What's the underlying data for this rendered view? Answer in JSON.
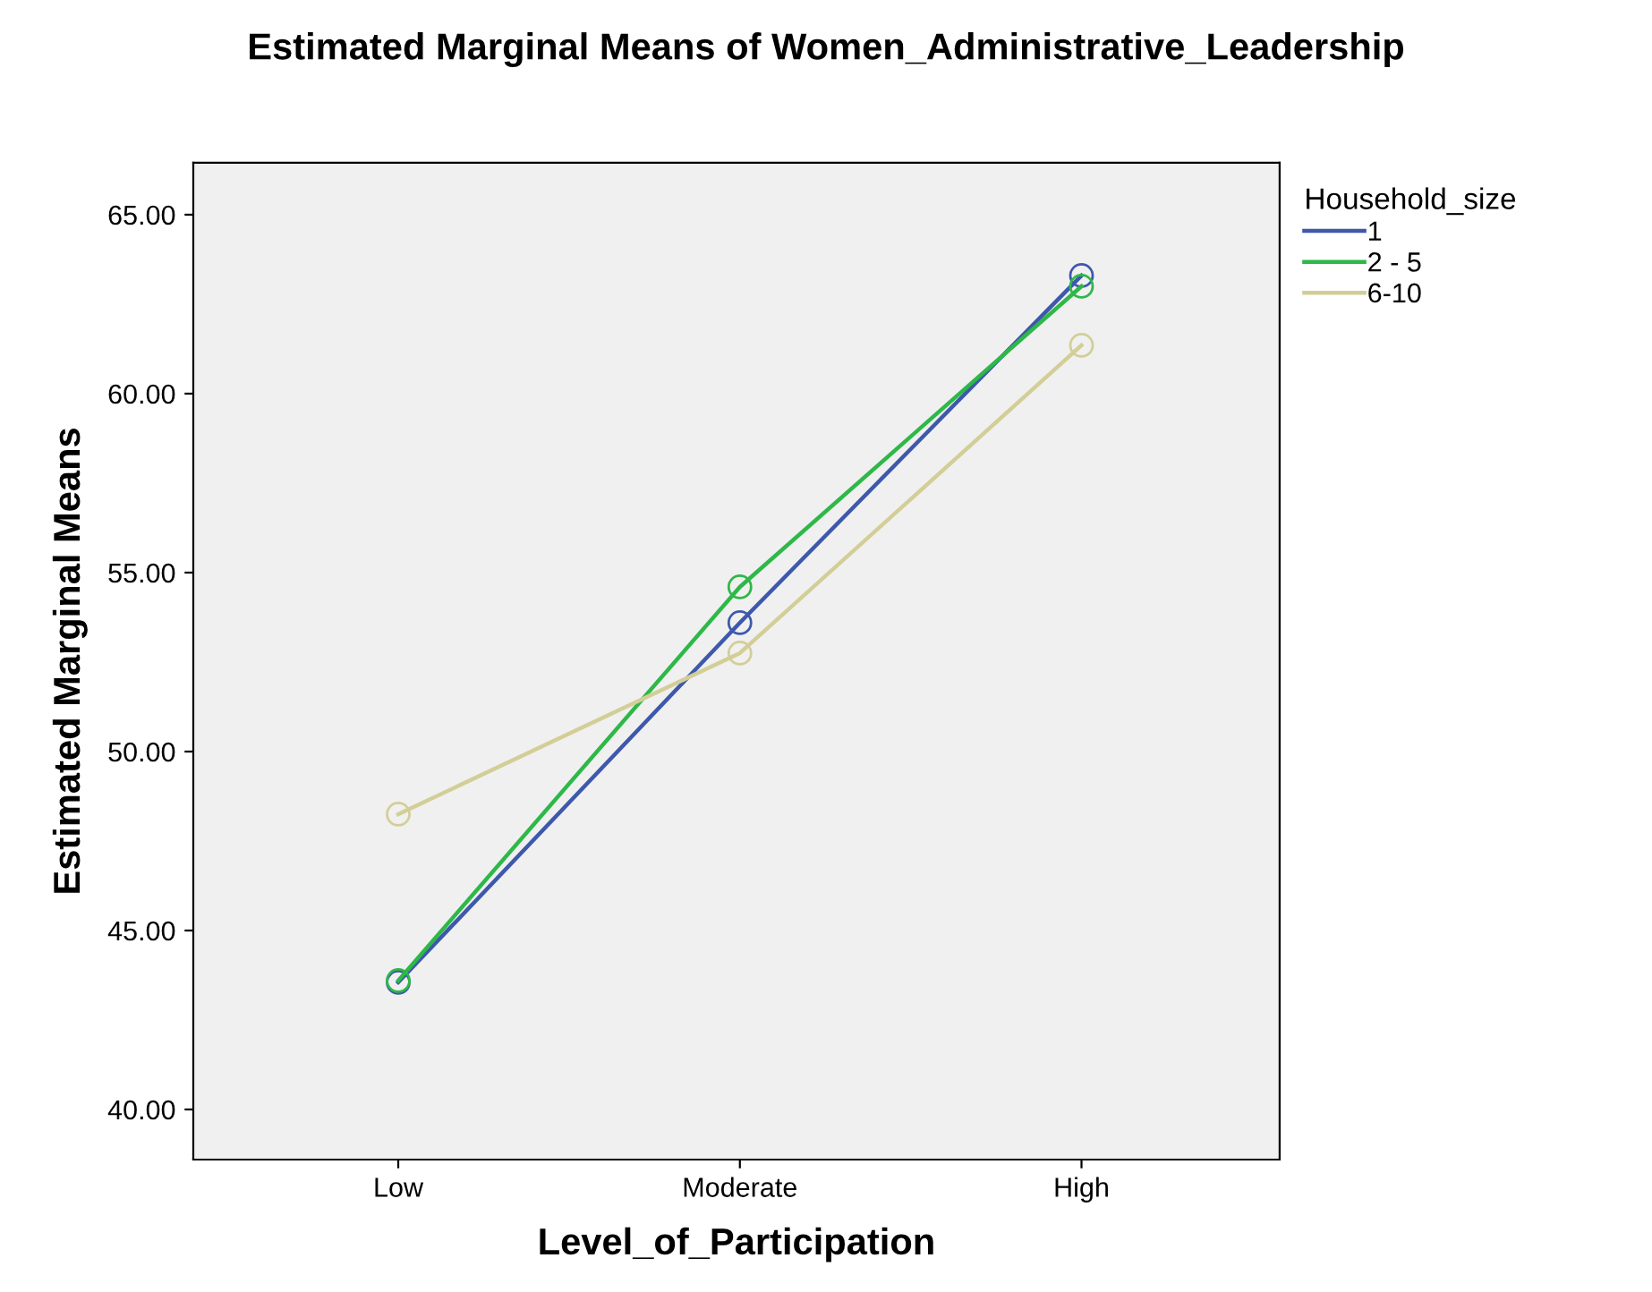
{
  "chart_data": {
    "type": "line",
    "title": "Estimated Marginal Means of Women_Administrative_Leadership",
    "xlabel": "Level_of_Participation",
    "ylabel": "Estimated Marginal Means",
    "legend_title": "Household_size",
    "categories": [
      "Low",
      "Moderate",
      "High"
    ],
    "series": [
      {
        "name": "1",
        "color": "#3e58ac",
        "values": [
          43.55,
          53.6,
          63.3
        ]
      },
      {
        "name": "2 - 5",
        "color": "#2eb848",
        "values": [
          43.6,
          54.6,
          63.0
        ]
      },
      {
        "name": "6-10",
        "color": "#d3ce97",
        "values": [
          48.25,
          52.75,
          61.35
        ]
      }
    ],
    "ylim": [
      38.6,
      66.45
    ],
    "yticks": [
      {
        "value": 40,
        "label": "40.00"
      },
      {
        "value": 45,
        "label": "45.00"
      },
      {
        "value": 50,
        "label": "50.00"
      },
      {
        "value": 55,
        "label": "55.00"
      },
      {
        "value": 60,
        "label": "60.00"
      },
      {
        "value": 65,
        "label": "65.00"
      }
    ],
    "marker": "circle",
    "line_style": "solid",
    "grid": false,
    "legend": "top right"
  }
}
